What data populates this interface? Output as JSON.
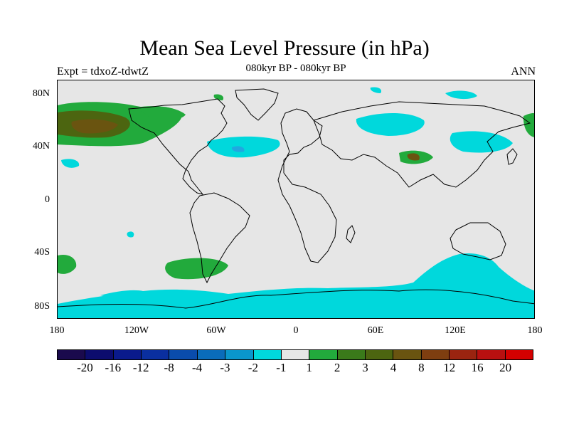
{
  "title": "Mean Sea Level Pressure (in hPa)",
  "expt": "Expt = tdxoZ-tdwtZ",
  "period": "080kyr BP - 080kyr BP",
  "season": "ANN",
  "lat_labels": [
    "80N",
    "40N",
    "0",
    "40S",
    "80S"
  ],
  "lon_labels": [
    "180",
    "120W",
    "60W",
    "0",
    "60E",
    "120E",
    "180"
  ],
  "colorbar": {
    "colors": [
      "#1a0a4d",
      "#0c0c6e",
      "#0a1a8c",
      "#0a2fa0",
      "#0a4cac",
      "#0a6cba",
      "#0a96cc",
      "#00d8dc",
      "#e6e6e6",
      "#22aa3c",
      "#3a7a1a",
      "#4c6510",
      "#6a5410",
      "#7e3e10",
      "#9a2410",
      "#b81010",
      "#d40000"
    ],
    "labels": [
      "-20",
      "-16",
      "-12",
      "-8",
      "-4",
      "-3",
      "-2",
      "-1",
      "1",
      "2",
      "3",
      "4",
      "8",
      "12",
      "16",
      "20"
    ]
  },
  "map_colors": {
    "background": "#e6e6e6",
    "cyan": "#00d8dc",
    "green": "#22aa3c",
    "darkgreen": "#4c6510",
    "brown": "#7e3e10",
    "blue": "#20a8e0"
  }
}
